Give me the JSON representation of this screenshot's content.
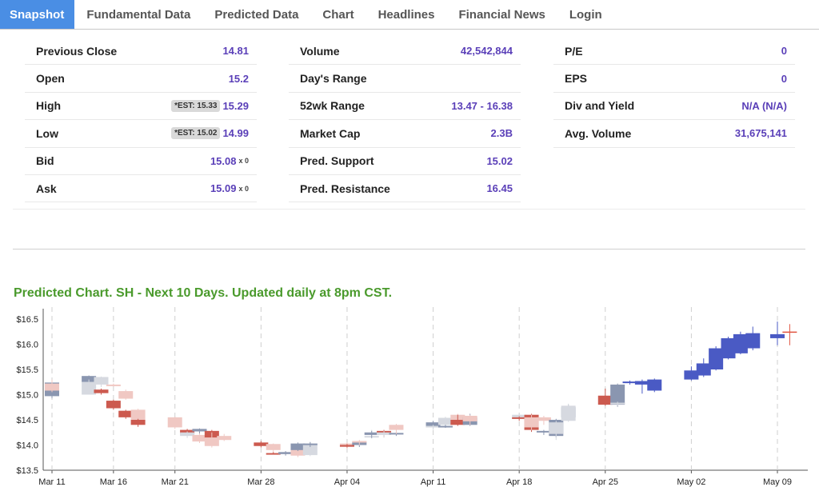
{
  "tabs": [
    {
      "label": "Snapshot",
      "active": true
    },
    {
      "label": "Fundamental Data"
    },
    {
      "label": "Predicted Data"
    },
    {
      "label": "Chart"
    },
    {
      "label": "Headlines"
    },
    {
      "label": "Financial News"
    },
    {
      "label": "Login"
    }
  ],
  "stats": {
    "col1": [
      {
        "label": "Previous Close",
        "value": "14.81"
      },
      {
        "label": "Open",
        "value": "15.2"
      },
      {
        "label": "High",
        "est": "*EST: 15.33",
        "value": "15.29"
      },
      {
        "label": "Low",
        "est": "*EST: 15.02",
        "value": "14.99"
      },
      {
        "label": "Bid",
        "value": "15.08",
        "size": "x 0"
      },
      {
        "label": "Ask",
        "value": "15.09",
        "size": "x 0"
      }
    ],
    "col2": [
      {
        "label": "Volume",
        "value": "42,542,844"
      },
      {
        "label": "Day's Range",
        "value": ""
      },
      {
        "label": "52wk Range",
        "value": "13.47 - 16.38"
      },
      {
        "label": "Market Cap",
        "value": "2.3B"
      },
      {
        "label": "Pred. Support",
        "value": "15.02"
      },
      {
        "label": "Pred. Resistance",
        "value": "16.45"
      }
    ],
    "col3": [
      {
        "label": "P/E",
        "value": "0"
      },
      {
        "label": "EPS",
        "value": "0"
      },
      {
        "label": "Div and Yield",
        "value": "N/A (N/A)"
      },
      {
        "label": "Avg. Volume",
        "value": "31,675,141"
      }
    ]
  },
  "chart_title": "Predicted Chart. SH - Next 10 Days. Updated daily at 8pm CST.",
  "chart_data": {
    "type": "candlestick",
    "y_ticks": [
      "$13.5",
      "$14.0",
      "$14.5",
      "$15.0",
      "$15.5",
      "$16.0",
      "$16.5"
    ],
    "x_ticks": [
      "Mar 11",
      "Mar 16",
      "Mar 21",
      "Mar 28",
      "Apr 04",
      "Apr 11",
      "Apr 18",
      "Apr 25",
      "May 02",
      "May 09"
    ],
    "ylim": [
      13.5,
      16.6
    ],
    "colors": {
      "hist_up": "#8a96b0",
      "hist_down": "#cc5a4f",
      "faded_up": "#d6d9e0",
      "faded_down": "#f0c8c3",
      "pred_up": "#4a5ac4",
      "pred_next": "#e0533f"
    },
    "candles": [
      {
        "x": "Mar 11",
        "o": 14.97,
        "h": 15.27,
        "l": 14.93,
        "c": 15.24,
        "style": "hist_up"
      },
      {
        "x": "Mar 11",
        "o": 15.22,
        "h": 15.3,
        "l": 15.05,
        "c": 15.08,
        "style": "faded_down"
      },
      {
        "x": "Mar 14",
        "o": 15.25,
        "h": 15.38,
        "l": 15.24,
        "c": 15.37,
        "style": "hist_up"
      },
      {
        "x": "Mar 14",
        "o": 15.0,
        "h": 15.3,
        "l": 15.0,
        "c": 15.25,
        "style": "faded_up"
      },
      {
        "x": "Mar 15",
        "o": 15.35,
        "h": 15.36,
        "l": 15.15,
        "c": 15.2,
        "style": "faded_up"
      },
      {
        "x": "Mar 15",
        "o": 15.1,
        "h": 15.12,
        "l": 15.0,
        "c": 15.03,
        "style": "hist_down"
      },
      {
        "x": "Mar 16",
        "o": 15.2,
        "h": 15.22,
        "l": 15.16,
        "c": 15.17,
        "style": "faded_down"
      },
      {
        "x": "Mar 16",
        "o": 14.88,
        "h": 14.9,
        "l": 14.7,
        "c": 14.73,
        "style": "hist_down"
      },
      {
        "x": "Mar 17",
        "o": 15.07,
        "h": 15.1,
        "l": 14.9,
        "c": 14.92,
        "style": "faded_down"
      },
      {
        "x": "Mar 17",
        "o": 14.68,
        "h": 14.7,
        "l": 14.52,
        "c": 14.55,
        "style": "hist_down"
      },
      {
        "x": "Mar 18",
        "o": 14.7,
        "h": 14.72,
        "l": 14.47,
        "c": 14.5,
        "style": "faded_down"
      },
      {
        "x": "Mar 18",
        "o": 14.5,
        "h": 14.52,
        "l": 14.36,
        "c": 14.4,
        "style": "hist_down"
      },
      {
        "x": "Mar 21",
        "o": 14.55,
        "h": 14.56,
        "l": 14.32,
        "c": 14.35,
        "style": "faded_down"
      },
      {
        "x": "Mar 22",
        "o": 14.3,
        "h": 14.32,
        "l": 14.2,
        "c": 14.22,
        "style": "hist_down"
      },
      {
        "x": "Mar 22",
        "o": 14.25,
        "h": 14.27,
        "l": 14.14,
        "c": 14.18,
        "style": "faded_up"
      },
      {
        "x": "Mar 23",
        "o": 14.2,
        "h": 14.26,
        "l": 14.04,
        "c": 14.07,
        "style": "faded_down"
      },
      {
        "x": "Mar 23",
        "o": 14.27,
        "h": 14.33,
        "l": 14.23,
        "c": 14.32,
        "style": "hist_up"
      },
      {
        "x": "Mar 24",
        "o": 14.28,
        "h": 14.3,
        "l": 14.1,
        "c": 14.14,
        "style": "hist_down"
      },
      {
        "x": "Mar 24",
        "o": 14.15,
        "h": 14.25,
        "l": 13.95,
        "c": 13.98,
        "style": "faded_down"
      },
      {
        "x": "Mar 25",
        "o": 14.18,
        "h": 14.22,
        "l": 14.08,
        "c": 14.1,
        "style": "faded_down"
      },
      {
        "x": "Mar 28",
        "o": 14.05,
        "h": 14.08,
        "l": 13.95,
        "c": 13.98,
        "style": "hist_down"
      },
      {
        "x": "Mar 29",
        "o": 14.02,
        "h": 14.03,
        "l": 13.86,
        "c": 13.9,
        "style": "faded_down"
      },
      {
        "x": "Mar 29",
        "o": 13.83,
        "h": 13.86,
        "l": 13.81,
        "c": 13.84,
        "style": "hist_down"
      },
      {
        "x": "Mar 30",
        "o": 13.82,
        "h": 13.88,
        "l": 13.79,
        "c": 13.86,
        "style": "hist_up"
      },
      {
        "x": "Mar 31",
        "o": 13.92,
        "h": 13.94,
        "l": 13.76,
        "c": 13.79,
        "style": "faded_down"
      },
      {
        "x": "Mar 31",
        "o": 13.9,
        "h": 14.05,
        "l": 13.88,
        "c": 14.03,
        "style": "hist_up"
      },
      {
        "x": "Apr 01",
        "o": 13.8,
        "h": 14.05,
        "l": 13.78,
        "c": 14.02,
        "style": "faded_up"
      },
      {
        "x": "Apr 01",
        "o": 14.02,
        "h": 14.06,
        "l": 13.96,
        "c": 14.03,
        "style": "hist_up"
      },
      {
        "x": "Apr 04",
        "o": 14.03,
        "h": 14.05,
        "l": 13.92,
        "c": 13.96,
        "style": "faded_down"
      },
      {
        "x": "Apr 04",
        "o": 14.0,
        "h": 14.02,
        "l": 13.95,
        "c": 13.97,
        "style": "hist_down"
      },
      {
        "x": "Apr 05",
        "o": 14.0,
        "h": 14.07,
        "l": 13.96,
        "c": 14.06,
        "style": "hist_up"
      },
      {
        "x": "Apr 05",
        "o": 14.08,
        "h": 14.1,
        "l": 14.0,
        "c": 14.06,
        "style": "faded_down"
      },
      {
        "x": "Apr 06",
        "o": 14.15,
        "h": 14.3,
        "l": 14.13,
        "c": 14.18,
        "style": "faded_up"
      },
      {
        "x": "Apr 06",
        "o": 14.2,
        "h": 14.28,
        "l": 14.14,
        "c": 14.25,
        "style": "hist_up"
      },
      {
        "x": "Apr 07",
        "o": 14.28,
        "h": 14.3,
        "l": 14.15,
        "c": 14.22,
        "style": "hist_down"
      },
      {
        "x": "Apr 07",
        "o": 14.2,
        "h": 14.28,
        "l": 14.15,
        "c": 14.25,
        "style": "faded_up"
      },
      {
        "x": "Apr 08",
        "o": 14.24,
        "h": 14.26,
        "l": 14.18,
        "c": 14.22,
        "style": "hist_up"
      },
      {
        "x": "Apr 08",
        "o": 14.4,
        "h": 14.42,
        "l": 14.22,
        "c": 14.3,
        "style": "faded_down"
      },
      {
        "x": "Apr 11",
        "o": 14.35,
        "h": 14.48,
        "l": 14.33,
        "c": 14.45,
        "style": "hist_up"
      },
      {
        "x": "Apr 11",
        "o": 14.38,
        "h": 14.4,
        "l": 14.3,
        "c": 14.36,
        "style": "faded_up"
      },
      {
        "x": "Apr 12",
        "o": 14.4,
        "h": 14.56,
        "l": 14.38,
        "c": 14.54,
        "style": "faded_up"
      },
      {
        "x": "Apr 12",
        "o": 14.38,
        "h": 14.4,
        "l": 14.34,
        "c": 14.36,
        "style": "hist_up"
      },
      {
        "x": "Apr 13",
        "o": 14.6,
        "h": 14.62,
        "l": 14.4,
        "c": 14.48,
        "style": "faded_down"
      },
      {
        "x": "Apr 13",
        "o": 14.5,
        "h": 14.6,
        "l": 14.38,
        "c": 14.4,
        "style": "hist_down"
      },
      {
        "x": "Apr 14",
        "o": 14.4,
        "h": 14.62,
        "l": 14.38,
        "c": 14.55,
        "style": "hist_up"
      },
      {
        "x": "Apr 14",
        "o": 14.58,
        "h": 14.6,
        "l": 14.4,
        "c": 14.47,
        "style": "faded_down"
      },
      {
        "x": "Apr 18",
        "o": 14.52,
        "h": 14.62,
        "l": 14.5,
        "c": 14.6,
        "style": "faded_up"
      },
      {
        "x": "Apr 18",
        "o": 14.55,
        "h": 14.57,
        "l": 14.48,
        "c": 14.52,
        "style": "hist_down"
      },
      {
        "x": "Apr 19",
        "o": 14.6,
        "h": 14.62,
        "l": 14.26,
        "c": 14.3,
        "style": "hist_down"
      },
      {
        "x": "Apr 19",
        "o": 14.55,
        "h": 14.6,
        "l": 14.3,
        "c": 14.35,
        "style": "faded_down"
      },
      {
        "x": "Apr 20",
        "o": 14.25,
        "h": 14.3,
        "l": 14.2,
        "c": 14.28,
        "style": "hist_up"
      },
      {
        "x": "Apr 20",
        "o": 14.55,
        "h": 14.58,
        "l": 14.4,
        "c": 14.48,
        "style": "faded_down"
      },
      {
        "x": "Apr 21",
        "o": 14.18,
        "h": 14.52,
        "l": 14.15,
        "c": 14.5,
        "style": "hist_up"
      },
      {
        "x": "Apr 21",
        "o": 14.22,
        "h": 14.48,
        "l": 14.1,
        "c": 14.45,
        "style": "faded_up"
      },
      {
        "x": "Apr 22",
        "o": 14.55,
        "h": 14.8,
        "l": 14.53,
        "c": 14.75,
        "style": "hist_up"
      },
      {
        "x": "Apr 22",
        "o": 14.48,
        "h": 14.82,
        "l": 14.46,
        "c": 14.78,
        "style": "faded_up"
      },
      {
        "x": "Apr 25",
        "o": 14.8,
        "h": 15.12,
        "l": 14.78,
        "c": 14.98,
        "style": "hist_down"
      },
      {
        "x": "Apr 26",
        "o": 14.8,
        "h": 15.22,
        "l": 14.76,
        "c": 15.2,
        "style": "hist_up"
      },
      {
        "x": "Apr 26",
        "o": 14.82,
        "h": 14.86,
        "l": 14.78,
        "c": 14.84,
        "style": "faded_up"
      },
      {
        "x": "Apr 27",
        "o": 15.25,
        "h": 15.28,
        "l": 15.2,
        "c": 15.26,
        "style": "pred_up"
      },
      {
        "x": "Apr 28",
        "o": 15.2,
        "h": 15.3,
        "l": 15.02,
        "c": 15.27,
        "style": "pred_up"
      },
      {
        "x": "Apr 29",
        "o": 15.08,
        "h": 15.32,
        "l": 15.05,
        "c": 15.3,
        "style": "pred_up"
      },
      {
        "x": "May 02",
        "o": 15.3,
        "h": 15.56,
        "l": 15.28,
        "c": 15.48,
        "style": "pred_up"
      },
      {
        "x": "May 03",
        "o": 15.38,
        "h": 15.72,
        "l": 15.35,
        "c": 15.62,
        "style": "pred_up"
      },
      {
        "x": "May 04",
        "o": 15.5,
        "h": 15.96,
        "l": 15.48,
        "c": 15.92,
        "style": "pred_up"
      },
      {
        "x": "May 05",
        "o": 15.72,
        "h": 16.15,
        "l": 15.7,
        "c": 16.12,
        "style": "pred_up"
      },
      {
        "x": "May 06",
        "o": 15.82,
        "h": 16.25,
        "l": 15.8,
        "c": 16.2,
        "style": "pred_up"
      },
      {
        "x": "May 07",
        "o": 15.92,
        "h": 16.35,
        "l": 15.88,
        "c": 16.22,
        "style": "pred_up"
      },
      {
        "x": "May 09",
        "o": 16.12,
        "h": 16.45,
        "l": 15.98,
        "c": 16.2,
        "style": "pred_up"
      },
      {
        "x": "May 10",
        "o": 16.24,
        "h": 16.4,
        "l": 15.98,
        "c": 16.24,
        "style": "pred_next"
      }
    ]
  }
}
